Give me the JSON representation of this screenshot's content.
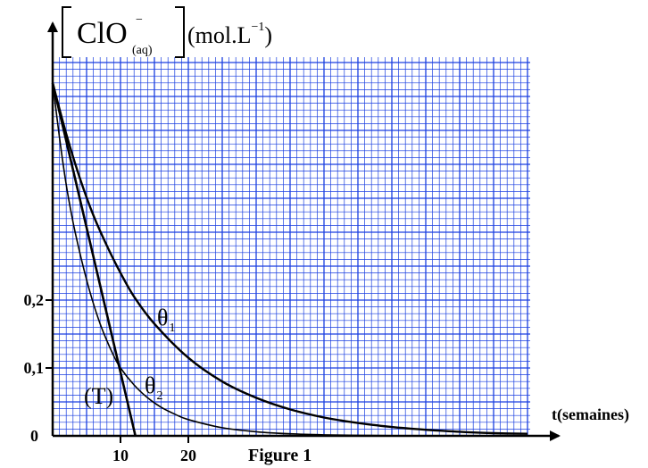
{
  "chart_data": {
    "type": "line",
    "ylabel": {
      "species": "ClO",
      "charge": "−",
      "state": "(aq)",
      "unit_prefix": "(mol.L",
      "unit_exp": "−1",
      "unit_suffix": ")"
    },
    "xlabel": "t(semaines)",
    "caption": "Figure 1",
    "origin_label": "0",
    "x_ticks": [
      {
        "value": 10,
        "label": "10"
      },
      {
        "value": 20,
        "label": "20"
      }
    ],
    "y_ticks": [
      {
        "value": 0.1,
        "label": "0,1"
      },
      {
        "value": 0.2,
        "label": "0,2"
      }
    ],
    "xlim": [
      0,
      72
    ],
    "ylim": [
      0,
      0.56
    ],
    "grid": true,
    "grid_color": "#1a3fe0",
    "series": [
      {
        "name": "θ1",
        "name_main": "θ",
        "name_sub": "1",
        "x": [
          0,
          2,
          4,
          6,
          8,
          10,
          12,
          15,
          20,
          25,
          30,
          35,
          40,
          45,
          50,
          55,
          60,
          65,
          70
        ],
        "y": [
          0.52,
          0.445,
          0.38,
          0.325,
          0.28,
          0.24,
          0.205,
          0.165,
          0.115,
          0.08,
          0.056,
          0.039,
          0.027,
          0.019,
          0.013,
          0.009,
          0.006,
          0.004,
          0.003
        ]
      },
      {
        "name": "θ2",
        "name_main": "θ",
        "name_sub": "2",
        "x": [
          0,
          1,
          2,
          3,
          4,
          5,
          6,
          7,
          8,
          9,
          10,
          12,
          14,
          16,
          18,
          20,
          25,
          30,
          35,
          40,
          45,
          50
        ],
        "y": [
          0.52,
          0.44,
          0.37,
          0.315,
          0.27,
          0.23,
          0.195,
          0.165,
          0.14,
          0.118,
          0.1,
          0.075,
          0.056,
          0.042,
          0.032,
          0.024,
          0.012,
          0.006,
          0.003,
          0.0015,
          0.0008,
          0.0003
        ]
      },
      {
        "name": "(T)",
        "x": [
          0,
          12.2
        ],
        "y": [
          0.52,
          0
        ]
      }
    ]
  }
}
